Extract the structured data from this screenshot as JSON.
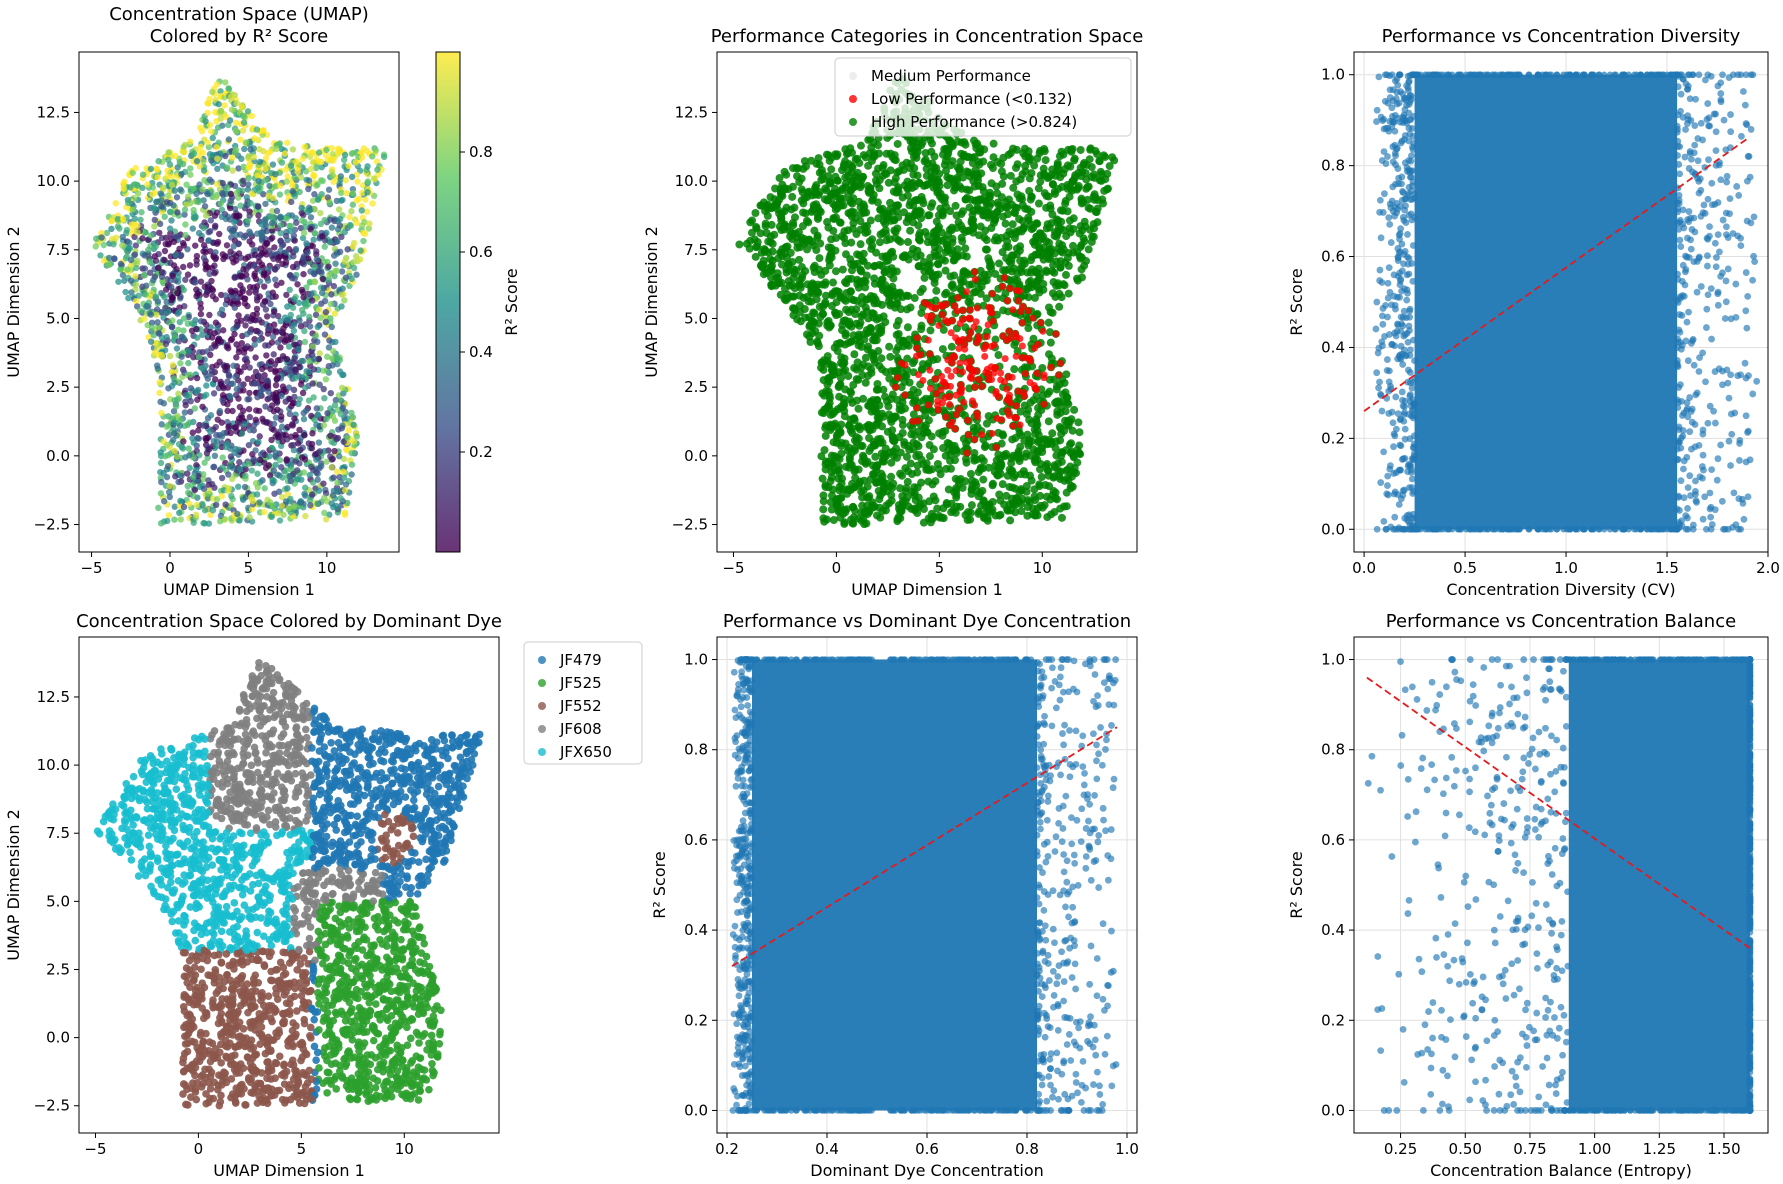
{
  "chart_data": [
    {
      "type": "scatter",
      "title": "Concentration Space (UMAP)\nColored by R² Score",
      "xlabel": "UMAP Dimension 1",
      "ylabel": "UMAP Dimension 2",
      "xlim": [
        -5.8,
        14.6
      ],
      "ylim": [
        -3.5,
        14.7
      ],
      "xticks": [
        -5,
        0,
        5,
        10
      ],
      "yticks": [
        -2.5,
        0.0,
        2.5,
        5.0,
        7.5,
        10.0,
        12.5
      ],
      "xtick_labels": [
        "−5",
        "0",
        "5",
        "10"
      ],
      "ytick_labels": [
        "−2.5",
        "0.0",
        "2.5",
        "5.0",
        "7.5",
        "10.0",
        "12.5"
      ],
      "colorbar": {
        "label": "R² Score",
        "ticks": [
          0.2,
          0.4,
          0.6,
          0.8
        ],
        "tick_labels": [
          "0.2",
          "0.4",
          "0.6",
          "0.8"
        ],
        "range": [
          0.0,
          1.0
        ],
        "colormap": "viridis"
      },
      "shape": [
        [
          -5.0,
          7.6
        ],
        [
          -2.5,
          10.5
        ],
        [
          1.5,
          11.5
        ],
        [
          3.0,
          14.0
        ],
        [
          6.5,
          11.5
        ],
        [
          9.5,
          11.2
        ],
        [
          13.8,
          11.2
        ],
        [
          12.0,
          6.5
        ],
        [
          10.5,
          5.0
        ],
        [
          12.0,
          0.5
        ],
        [
          11.2,
          -2.3
        ],
        [
          1.0,
          -2.5
        ],
        [
          -0.8,
          -2.5
        ],
        [
          -0.7,
          3.0
        ],
        [
          -1.5,
          4.5
        ],
        [
          -3.5,
          6.5
        ]
      ],
      "grid": false,
      "legend": "none"
    },
    {
      "type": "scatter",
      "title": "Performance Categories in Concentration Space",
      "xlabel": "UMAP Dimension 1",
      "ylabel": "UMAP Dimension 2",
      "xlim": [
        -5.8,
        14.6
      ],
      "ylim": [
        -3.5,
        14.7
      ],
      "xticks": [
        -5,
        0,
        5,
        10
      ],
      "yticks": [
        -2.5,
        0.0,
        2.5,
        5.0,
        7.5,
        10.0,
        12.5
      ],
      "xtick_labels": [
        "−5",
        "0",
        "5",
        "10"
      ],
      "ytick_labels": [
        "−2.5",
        "0.0",
        "2.5",
        "5.0",
        "7.5",
        "10.0",
        "12.5"
      ],
      "series": [
        {
          "name": "Medium Performance",
          "color": "#d3d3d3"
        },
        {
          "name": "Low Performance (<0.132)",
          "color": "#ff0000"
        },
        {
          "name": "High Performance (>0.824)",
          "color": "#008000"
        }
      ],
      "low_region_center": [
        7.0,
        3.5
      ],
      "grid": false,
      "legend": "top-right"
    },
    {
      "type": "scatter",
      "title": "Performance vs Concentration Diversity",
      "xlabel": "Concentration Diversity (CV)",
      "ylabel": "R² Score",
      "xlim": [
        -0.05,
        2.0
      ],
      "ylim": [
        -0.05,
        1.05
      ],
      "xticks": [
        0.0,
        0.5,
        1.0,
        1.5,
        2.0
      ],
      "yticks": [
        0.0,
        0.2,
        0.4,
        0.6,
        0.8,
        1.0
      ],
      "xtick_labels": [
        "0.0",
        "0.5",
        "1.0",
        "1.5",
        "2.0"
      ],
      "ytick_labels": [
        "0.0",
        "0.2",
        "0.4",
        "0.6",
        "0.8",
        "1.0"
      ],
      "dense_band": [
        0.25,
        1.55
      ],
      "point_range": [
        0.05,
        1.95
      ],
      "trend": {
        "x": [
          0.0,
          1.9
        ],
        "y": [
          0.26,
          0.86
        ],
        "color": "#e41a1c"
      },
      "series_color": "#1f77b4",
      "grid": true,
      "legend": "none"
    },
    {
      "type": "scatter",
      "title": "Concentration Space Colored by Dominant Dye",
      "xlabel": "UMAP Dimension 1",
      "ylabel": "UMAP Dimension 2",
      "xlim": [
        -5.8,
        14.6
      ],
      "ylim": [
        -3.5,
        14.7
      ],
      "xticks": [
        -5,
        0,
        5,
        10
      ],
      "yticks": [
        -2.5,
        0.0,
        2.5,
        5.0,
        7.5,
        10.0,
        12.5
      ],
      "xtick_labels": [
        "−5",
        "0",
        "5",
        "10"
      ],
      "ytick_labels": [
        "−2.5",
        "0.0",
        "2.5",
        "5.0",
        "7.5",
        "10.0",
        "12.5"
      ],
      "series": [
        {
          "name": "JF479",
          "color": "#1f77b4"
        },
        {
          "name": "JF525",
          "color": "#2ca02c"
        },
        {
          "name": "JF552",
          "color": "#8c564b"
        },
        {
          "name": "JF608",
          "color": "#7f7f7f"
        },
        {
          "name": "JFX650",
          "color": "#17becf"
        }
      ],
      "grid": false,
      "legend": "outside-right"
    },
    {
      "type": "scatter",
      "title": "Performance vs Dominant Dye Concentration",
      "xlabel": "Dominant Dye Concentration",
      "ylabel": "R² Score",
      "xlim": [
        0.18,
        1.02
      ],
      "ylim": [
        -0.05,
        1.05
      ],
      "xticks": [
        0.2,
        0.4,
        0.6,
        0.8,
        1.0
      ],
      "yticks": [
        0.0,
        0.2,
        0.4,
        0.6,
        0.8,
        1.0
      ],
      "xtick_labels": [
        "0.2",
        "0.4",
        "0.6",
        "0.8",
        "1.0"
      ],
      "ytick_labels": [
        "0.0",
        "0.2",
        "0.4",
        "0.6",
        "0.8",
        "1.0"
      ],
      "dense_band": [
        0.25,
        0.82
      ],
      "point_range": [
        0.21,
        0.98
      ],
      "trend": {
        "x": [
          0.21,
          0.98
        ],
        "y": [
          0.32,
          0.85
        ],
        "color": "#e41a1c"
      },
      "series_color": "#1f77b4",
      "grid": true,
      "legend": "none"
    },
    {
      "type": "scatter",
      "title": "Performance vs Concentration Balance",
      "xlabel": "Concentration Balance (Entropy)",
      "ylabel": "R² Score",
      "xlim": [
        0.07,
        1.67
      ],
      "ylim": [
        -0.05,
        1.05
      ],
      "xticks": [
        0.25,
        0.5,
        0.75,
        1.0,
        1.25,
        1.5
      ],
      "yticks": [
        0.0,
        0.2,
        0.4,
        0.6,
        0.8,
        1.0
      ],
      "xtick_labels": [
        "0.25",
        "0.50",
        "0.75",
        "1.00",
        "1.25",
        "1.50"
      ],
      "ytick_labels": [
        "0.0",
        "0.2",
        "0.4",
        "0.6",
        "0.8",
        "1.0"
      ],
      "dense_band": [
        0.9,
        1.6
      ],
      "point_range": [
        0.12,
        1.6
      ],
      "trend": {
        "x": [
          0.12,
          1.6
        ],
        "y": [
          0.96,
          0.36
        ],
        "color": "#e41a1c"
      },
      "series_color": "#1f77b4",
      "grid": true,
      "legend": "none"
    }
  ]
}
